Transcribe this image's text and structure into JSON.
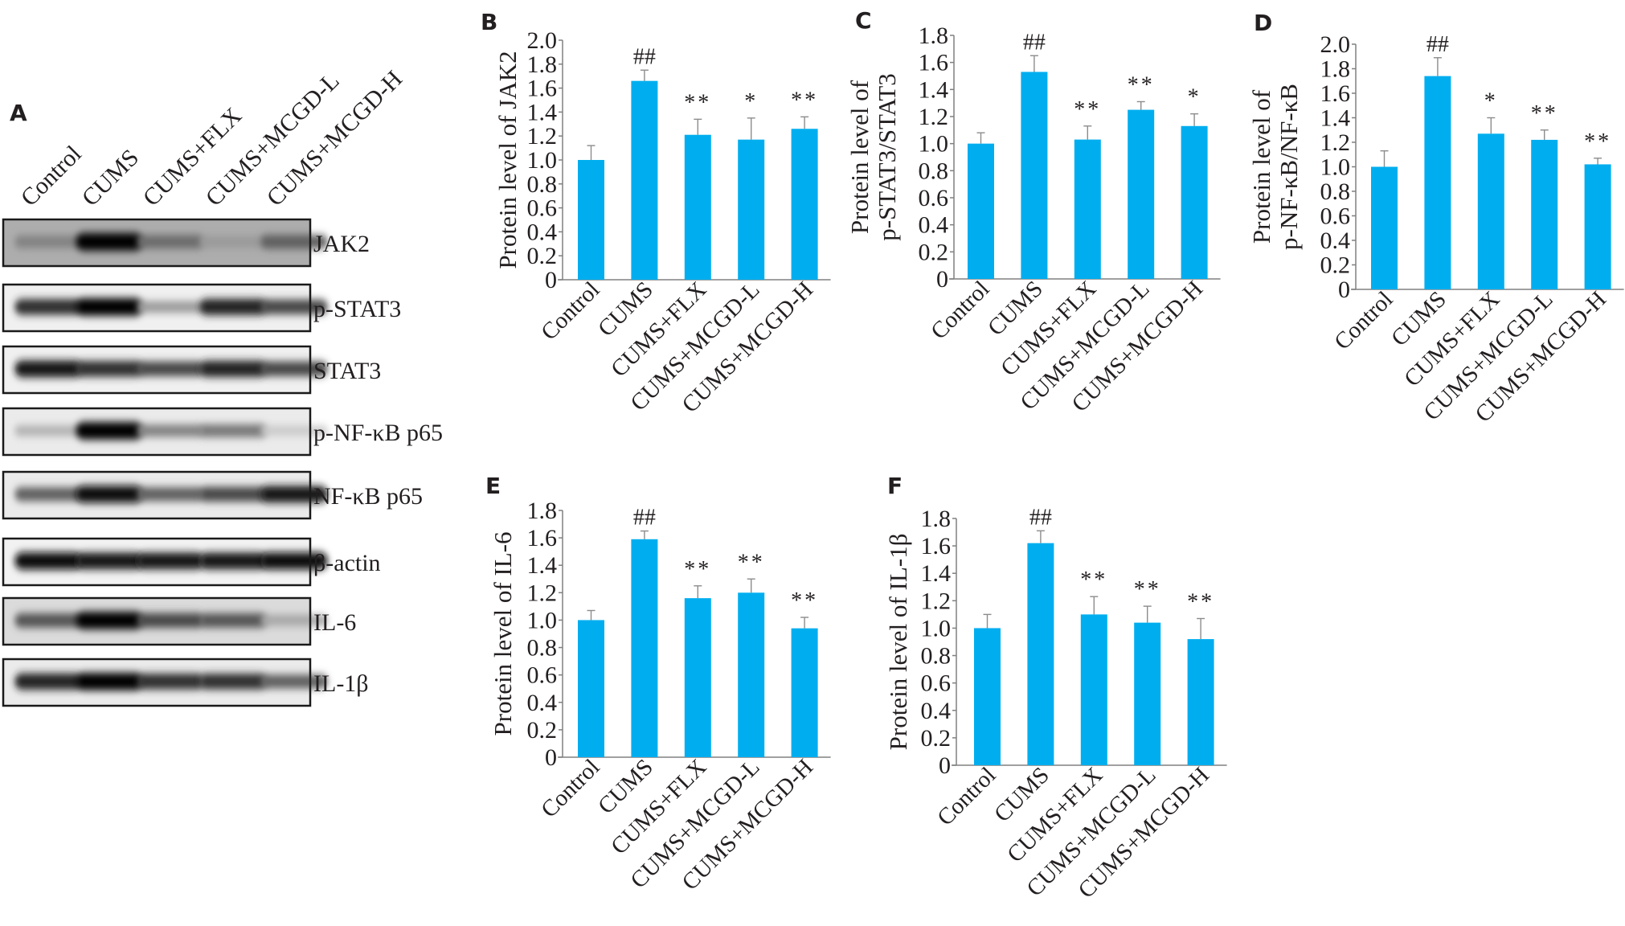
{
  "figure": {
    "panels": [
      "A",
      "B",
      "C",
      "D",
      "E",
      "F"
    ],
    "bar_color": "#00AEEF",
    "error_color": "#8C8C8C"
  },
  "western_blot": {
    "panel": "A",
    "lanes": [
      "Control",
      "CUMS",
      "CUMS+FLX",
      "CUMS+MCGD-L",
      "CUMS+MCGD-H"
    ],
    "rows": [
      {
        "label": "JAK2",
        "intensity": [
          0.45,
          1.0,
          0.55,
          0.35,
          0.6
        ],
        "background": 0.32
      },
      {
        "label": "p-STAT3",
        "intensity": [
          0.8,
          1.0,
          0.35,
          0.85,
          0.7
        ],
        "background": 0.06
      },
      {
        "label": "STAT3",
        "intensity": [
          0.9,
          0.8,
          0.7,
          0.85,
          0.7
        ],
        "background": 0.06
      },
      {
        "label": "p-NF-κB p65",
        "intensity": [
          0.25,
          1.0,
          0.45,
          0.5,
          0.15
        ],
        "background": 0.08
      },
      {
        "label": "NF-κB p65",
        "intensity": [
          0.6,
          0.95,
          0.6,
          0.7,
          0.9
        ],
        "background": 0.08
      },
      {
        "label": "β-actin",
        "intensity": [
          0.95,
          0.9,
          0.9,
          0.9,
          0.95
        ],
        "background": 0.05
      },
      {
        "label": "IL-6",
        "intensity": [
          0.65,
          1.0,
          0.7,
          0.65,
          0.3
        ],
        "background": 0.14
      },
      {
        "label": "IL-1β",
        "intensity": [
          0.85,
          1.0,
          0.8,
          0.8,
          0.6
        ],
        "background": 0.08
      }
    ]
  },
  "chart_data": [
    {
      "panel": "B",
      "type": "bar",
      "categories": [
        "Control",
        "CUMS",
        "CUMS+FLX",
        "CUMS+MCGD-L",
        "CUMS+MCGD-H"
      ],
      "values": [
        1.0,
        1.66,
        1.21,
        1.17,
        1.26
      ],
      "errors": [
        0.12,
        0.09,
        0.13,
        0.18,
        0.1
      ],
      "annotations": [
        "",
        "##",
        "**",
        "*",
        "**"
      ],
      "ylabel": [
        "Protein level of JAK2"
      ],
      "ylim": [
        0,
        2.0
      ],
      "yticks": [
        "0",
        "0.2",
        "0.4",
        "0.6",
        "0.8",
        "1.0",
        "1.2",
        "1.4",
        "1.6",
        "1.8",
        "2.0"
      ],
      "grid": false
    },
    {
      "panel": "C",
      "type": "bar",
      "categories": [
        "Control",
        "CUMS",
        "CUMS+FLX",
        "CUMS+MCGD-L",
        "CUMS+MCGD-H"
      ],
      "values": [
        1.0,
        1.53,
        1.03,
        1.25,
        1.13
      ],
      "errors": [
        0.08,
        0.12,
        0.1,
        0.06,
        0.09
      ],
      "annotations": [
        "",
        "##",
        "**",
        "**",
        "*"
      ],
      "ylabel": [
        "Protein level of",
        "p-STAT3/STAT3"
      ],
      "ylim": [
        0,
        1.8
      ],
      "yticks": [
        "0",
        "0.2",
        "0.4",
        "0.6",
        "0.8",
        "1.0",
        "1.2",
        "1.4",
        "1.6",
        "1.8"
      ],
      "grid": false
    },
    {
      "panel": "D",
      "type": "bar",
      "categories": [
        "Control",
        "CUMS",
        "CUMS+FLX",
        "CUMS+MCGD-L",
        "CUMS+MCGD-H"
      ],
      "values": [
        1.0,
        1.74,
        1.27,
        1.22,
        1.02
      ],
      "errors": [
        0.13,
        0.15,
        0.13,
        0.08,
        0.05
      ],
      "annotations": [
        "",
        "##",
        "*",
        "**",
        "**"
      ],
      "ylabel": [
        "Protein level of",
        "p-NF-κB/NF-κB"
      ],
      "ylim": [
        0,
        2.0
      ],
      "yticks": [
        "0",
        "0.2",
        "0.4",
        "0.6",
        "0.8",
        "1.0",
        "1.2",
        "1.4",
        "1.6",
        "1.8",
        "2.0"
      ],
      "grid": false
    },
    {
      "panel": "E",
      "type": "bar",
      "categories": [
        "Control",
        "CUMS",
        "CUMS+FLX",
        "CUMS+MCGD-L",
        "CUMS+MCGD-H"
      ],
      "values": [
        1.0,
        1.59,
        1.16,
        1.2,
        0.94
      ],
      "errors": [
        0.07,
        0.06,
        0.09,
        0.1,
        0.08
      ],
      "annotations": [
        "",
        "##",
        "**",
        "**",
        "**"
      ],
      "ylabel": [
        "Protein level of IL-6"
      ],
      "ylim": [
        0,
        1.8
      ],
      "yticks": [
        "0",
        "0.2",
        "0.4",
        "0.6",
        "0.8",
        "1.0",
        "1.2",
        "1.4",
        "1.6",
        "1.8"
      ],
      "grid": false
    },
    {
      "panel": "F",
      "type": "bar",
      "categories": [
        "Control",
        "CUMS",
        "CUMS+FLX",
        "CUMS+MCGD-L",
        "CUMS+MCGD-H"
      ],
      "values": [
        1.0,
        1.62,
        1.1,
        1.04,
        0.92
      ],
      "errors": [
        0.1,
        0.09,
        0.13,
        0.12,
        0.15
      ],
      "annotations": [
        "",
        "##",
        "**",
        "**",
        "**"
      ],
      "ylabel": [
        "Protein level of IL-1β"
      ],
      "ylim": [
        0,
        1.8
      ],
      "yticks": [
        "0",
        "0.2",
        "0.4",
        "0.6",
        "0.8",
        "1.0",
        "1.2",
        "1.4",
        "1.6",
        "1.8"
      ],
      "grid": false
    }
  ]
}
